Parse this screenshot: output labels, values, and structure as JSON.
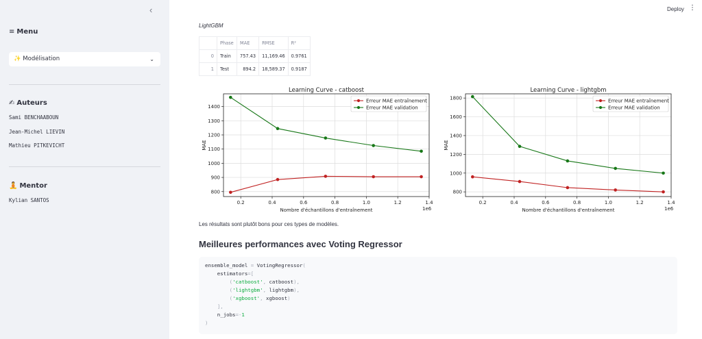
{
  "sidebar": {
    "collapse_icon": "chevron-left-icon",
    "menu": {
      "icon": "≡",
      "label": "Menu"
    },
    "select": {
      "icon": "✨",
      "value": "Modélisation"
    },
    "authors": {
      "icon": "✍",
      "title": "Auteurs",
      "names": [
        "Sami BENCHAABOUN",
        "Jean-Michel LIEVIN",
        "Mathieu PITKEVICHT"
      ]
    },
    "mentor": {
      "icon": "🧘",
      "title": "Mentor",
      "names": [
        "Kylian SANTOS"
      ]
    }
  },
  "header": {
    "deploy_label": "Deploy",
    "menu_icon": "⋮"
  },
  "main": {
    "model_caption": "LightGBM",
    "table": {
      "headers": [
        "",
        "Phase",
        "MAE",
        "RMSE",
        "R²"
      ],
      "rows": [
        [
          "0",
          "Train",
          "757.43",
          "11,169.46",
          "0.9761"
        ],
        [
          "1",
          "Test",
          "894.2",
          "18,589.37",
          "0.9187"
        ]
      ]
    },
    "results_text": "Les résultats sont plutôt bons pour ces types de modèles.",
    "section_title": "Meilleures performances avec Voting Regressor"
  },
  "chart_data": [
    {
      "type": "line",
      "title": "Learning Curve - catboost",
      "xlabel": "Nombre d'échantillons d'entraînement",
      "ylabel": "MAE",
      "x_scale_label": "1e6",
      "xlim": [
        0.09,
        1.4
      ],
      "ylim": [
        765,
        1490
      ],
      "xticks": [
        0.2,
        0.4,
        0.6,
        0.8,
        1.0,
        1.2,
        1.4
      ],
      "xtick_labels": [
        "0.2",
        "0.4",
        "0.6",
        "0.8",
        "1.0",
        "1.2",
        "1.4"
      ],
      "yticks": [
        800,
        900,
        1000,
        1100,
        1200,
        1300,
        1400
      ],
      "grid": true,
      "legend_position": "top-right",
      "x": [
        0.135,
        0.435,
        0.74,
        1.045,
        1.35
      ],
      "series": [
        {
          "name": "Erreur MAE entraînement",
          "color": "#c02121",
          "values": [
            795,
            885,
            908,
            905,
            905
          ]
        },
        {
          "name": "Erreur MAE validation",
          "color": "#177717",
          "values": [
            1465,
            1245,
            1178,
            1125,
            1085
          ]
        }
      ]
    },
    {
      "type": "line",
      "title": "Learning Curve - lightgbm",
      "xlabel": "Nombre d'échantillons d'entraînement",
      "ylabel": "MAE",
      "x_scale_label": "1e6",
      "xlim": [
        0.09,
        1.4
      ],
      "ylim": [
        750,
        1845
      ],
      "xticks": [
        0.2,
        0.4,
        0.6,
        0.8,
        1.0,
        1.2,
        1.4
      ],
      "xtick_labels": [
        "0.2",
        "0.4",
        "0.6",
        "0.8",
        "1.0",
        "1.2",
        "1.4"
      ],
      "yticks": [
        800,
        1000,
        1200,
        1400,
        1600,
        1800
      ],
      "grid": true,
      "legend_position": "top-right",
      "x": [
        0.135,
        0.435,
        0.74,
        1.045,
        1.35
      ],
      "series": [
        {
          "name": "Erreur MAE entraînement",
          "color": "#c02121",
          "values": [
            960,
            910,
            845,
            820,
            800
          ]
        },
        {
          "name": "Erreur MAE validation",
          "color": "#177717",
          "values": [
            1815,
            1285,
            1130,
            1050,
            1000
          ]
        }
      ]
    }
  ],
  "code": {
    "language": "python",
    "lines": [
      [
        [
          "ensemble_model ",
          ""
        ],
        [
          "=",
          "op"
        ],
        [
          " VotingRegressor",
          ""
        ],
        [
          "(",
          "op"
        ]
      ],
      [
        [
          "    estimators",
          ""
        ],
        [
          "=[",
          "op"
        ]
      ],
      [
        [
          "        ",
          ""
        ],
        [
          "(",
          "op"
        ],
        [
          "'catboost'",
          "str"
        ],
        [
          ", ",
          "op"
        ],
        [
          "catboost",
          ""
        ],
        [
          "),",
          "op"
        ]
      ],
      [
        [
          "        ",
          ""
        ],
        [
          "(",
          "op"
        ],
        [
          "'lightgbm'",
          "str"
        ],
        [
          ", ",
          "op"
        ],
        [
          "lightgbm",
          ""
        ],
        [
          "),",
          "op"
        ]
      ],
      [
        [
          "        ",
          ""
        ],
        [
          "(",
          "op"
        ],
        [
          "'xgboost'",
          "str"
        ],
        [
          ", ",
          "op"
        ],
        [
          "xgboost",
          ""
        ],
        [
          ")",
          "op"
        ]
      ],
      [
        [
          "    ",
          ""
        ],
        [
          "],",
          "op"
        ]
      ],
      [
        [
          "    n_jobs",
          ""
        ],
        [
          "=-",
          "op"
        ],
        [
          "1",
          "num"
        ]
      ],
      [
        [
          ")",
          "op"
        ]
      ]
    ]
  }
}
